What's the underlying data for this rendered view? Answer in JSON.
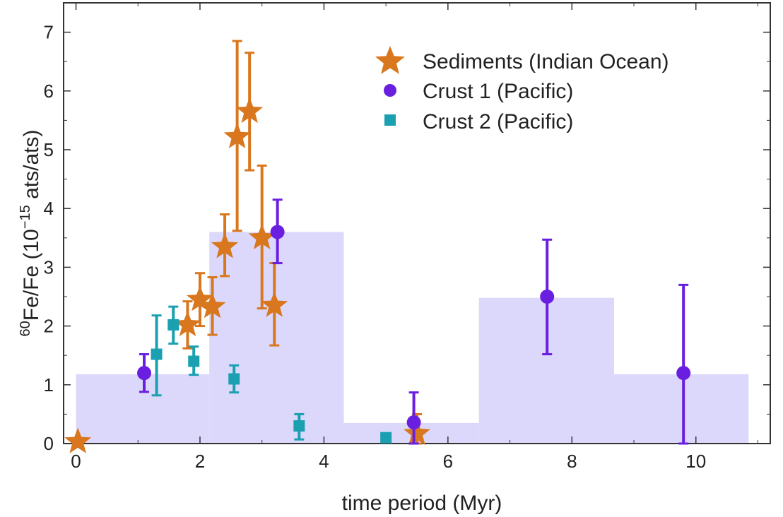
{
  "chart_data": {
    "type": "scatter",
    "xlabel": "time period (Myr)",
    "ylabel": {
      "superscript": "60",
      "main": "Fe/Fe (10",
      "exponent": "−15",
      "unit": " ats/ats)"
    },
    "xlim": [
      -0.2,
      11.2
    ],
    "ylim": [
      0,
      7.5
    ],
    "xticks": [
      0,
      2,
      4,
      6,
      8,
      10
    ],
    "yticks": [
      0,
      1,
      2,
      3,
      4,
      5,
      6,
      7
    ],
    "xticklabels": [
      "0",
      "2",
      "4",
      "6",
      "8",
      "10"
    ],
    "yticklabels": [
      "0",
      "1",
      "2",
      "3",
      "4",
      "5",
      "6",
      "7"
    ],
    "grid": false,
    "legend": "top-right",
    "background_steps": {
      "color": "#dcd8fb",
      "segments": [
        {
          "x0": 0.0,
          "x1": 2.15,
          "y": 1.18
        },
        {
          "x0": 2.15,
          "x1": 4.32,
          "y": 3.6
        },
        {
          "x0": 4.32,
          "x1": 6.5,
          "y": 0.35
        },
        {
          "x0": 6.5,
          "x1": 8.68,
          "y": 2.48
        },
        {
          "x0": 8.68,
          "x1": 10.85,
          "y": 1.18
        }
      ]
    },
    "series": [
      {
        "name": "Sediments (Indian Ocean)",
        "marker": "star",
        "color": "#d9771e",
        "points": [
          {
            "x": 0.03,
            "y": 0.03,
            "lo": 0.0,
            "hi": 0.0
          },
          {
            "x": 1.8,
            "y": 2.02,
            "lo": 1.62,
            "hi": 2.42
          },
          {
            "x": 2.0,
            "y": 2.45,
            "lo": 2.0,
            "hi": 2.9
          },
          {
            "x": 2.2,
            "y": 2.33,
            "lo": 1.85,
            "hi": 2.83
          },
          {
            "x": 2.4,
            "y": 3.35,
            "lo": 2.85,
            "hi": 3.9
          },
          {
            "x": 2.6,
            "y": 5.22,
            "lo": 3.62,
            "hi": 6.85
          },
          {
            "x": 2.8,
            "y": 5.65,
            "lo": 4.65,
            "hi": 6.65
          },
          {
            "x": 3.0,
            "y": 3.5,
            "lo": 2.3,
            "hi": 4.73
          },
          {
            "x": 3.2,
            "y": 2.35,
            "lo": 1.67,
            "hi": 3.07
          },
          {
            "x": 5.5,
            "y": 0.17,
            "lo": 0.0,
            "hi": 0.5
          }
        ]
      },
      {
        "name": "Crust 1 (Pacific)",
        "marker": "circle",
        "color": "#6a1fe0",
        "points": [
          {
            "x": 1.1,
            "y": 1.2,
            "lo": 0.88,
            "hi": 1.52
          },
          {
            "x": 3.25,
            "y": 3.6,
            "lo": 3.07,
            "hi": 4.15
          },
          {
            "x": 5.45,
            "y": 0.36,
            "lo": 0.0,
            "hi": 0.87
          },
          {
            "x": 7.6,
            "y": 2.5,
            "lo": 1.52,
            "hi": 3.47
          },
          {
            "x": 9.8,
            "y": 1.2,
            "lo": 0.0,
            "hi": 2.7
          }
        ]
      },
      {
        "name": "Crust 2 (Pacific)",
        "marker": "square",
        "color": "#1aa0b0",
        "points": [
          {
            "x": 1.3,
            "y": 1.52,
            "lo": 0.82,
            "hi": 2.18
          },
          {
            "x": 1.57,
            "y": 2.02,
            "lo": 1.7,
            "hi": 2.33
          },
          {
            "x": 1.9,
            "y": 1.4,
            "lo": 1.17,
            "hi": 1.65
          },
          {
            "x": 2.55,
            "y": 1.1,
            "lo": 0.87,
            "hi": 1.33
          },
          {
            "x": 3.6,
            "y": 0.3,
            "lo": 0.07,
            "hi": 0.5
          },
          {
            "x": 5.0,
            "y": 0.1,
            "lo": 0.05,
            "hi": 0.15
          }
        ]
      }
    ]
  }
}
